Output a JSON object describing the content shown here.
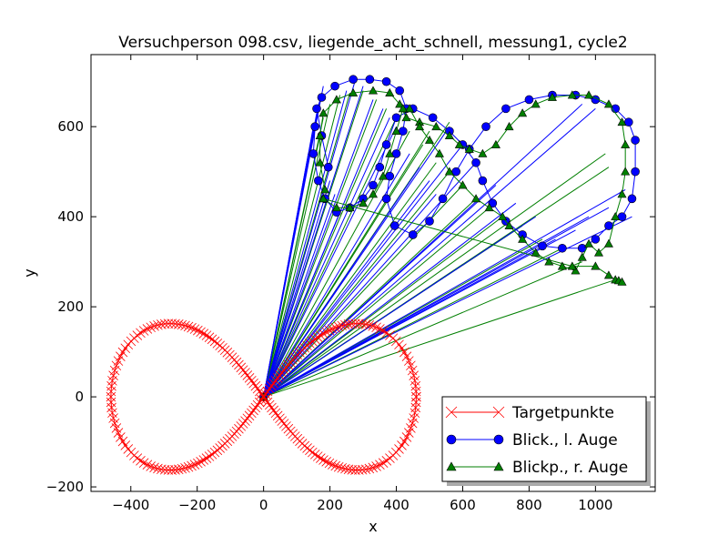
{
  "chart_data": {
    "type": "line",
    "title": "Versuchperson 098.csv, liegende_acht_schnell, messung1, cycle2",
    "xlabel": "x",
    "ylabel": "y",
    "xlim": [
      -520,
      1180
    ],
    "ylim": [
      -210,
      760
    ],
    "xticks": [
      -400,
      -200,
      0,
      200,
      400,
      600,
      800,
      1000
    ],
    "yticks": [
      -200,
      0,
      200,
      400,
      600
    ],
    "xtick_labels": [
      "−400",
      "−200",
      "0",
      "200",
      "400",
      "600",
      "800",
      "1000"
    ],
    "ytick_labels": [
      "−200",
      "0",
      "200",
      "400",
      "600"
    ],
    "grid": false,
    "legend_position": "lower-right",
    "series": [
      {
        "name": "Targetpunkte",
        "color": "#ff0000",
        "marker": "x",
        "description_type": "lemniscate",
        "lemniscate_a": 460,
        "lemniscate_points": 240
      },
      {
        "name": "Blick., l. Auge",
        "color": "#0000ff",
        "marker": "o",
        "origin": [
          0,
          0
        ],
        "trace": [
          [
            195,
            510
          ],
          [
            175,
            580
          ],
          [
            160,
            640
          ],
          [
            175,
            665
          ],
          [
            215,
            690
          ],
          [
            270,
            705
          ],
          [
            320,
            705
          ],
          [
            370,
            700
          ],
          [
            410,
            680
          ],
          [
            430,
            640
          ],
          [
            420,
            590
          ],
          [
            400,
            540
          ],
          [
            380,
            490
          ],
          [
            370,
            440
          ],
          [
            395,
            380
          ],
          [
            450,
            360
          ],
          [
            500,
            390
          ],
          [
            540,
            440
          ],
          [
            580,
            500
          ],
          [
            620,
            550
          ],
          [
            670,
            600
          ],
          [
            730,
            640
          ],
          [
            800,
            660
          ],
          [
            870,
            670
          ],
          [
            940,
            670
          ],
          [
            1000,
            660
          ],
          [
            1060,
            640
          ],
          [
            1100,
            610
          ],
          [
            1120,
            570
          ],
          [
            1120,
            500
          ],
          [
            1110,
            440
          ],
          [
            1080,
            400
          ],
          [
            1040,
            380
          ],
          [
            1000,
            350
          ],
          [
            960,
            330
          ],
          [
            900,
            330
          ],
          [
            840,
            335
          ],
          [
            780,
            360
          ],
          [
            730,
            390
          ],
          [
            690,
            430
          ],
          [
            660,
            480
          ],
          [
            640,
            520
          ],
          [
            600,
            560
          ],
          [
            560,
            590
          ],
          [
            510,
            620
          ],
          [
            450,
            640
          ],
          [
            400,
            620
          ],
          [
            370,
            560
          ],
          [
            350,
            510
          ],
          [
            330,
            470
          ],
          [
            300,
            440
          ],
          [
            260,
            420
          ],
          [
            220,
            410
          ],
          [
            185,
            440
          ],
          [
            165,
            480
          ],
          [
            150,
            540
          ],
          [
            155,
            600
          ]
        ],
        "spokes": [
          [
            135,
            540
          ],
          [
            150,
            600
          ],
          [
            160,
            630
          ],
          [
            170,
            660
          ],
          [
            180,
            690
          ],
          [
            200,
            480
          ],
          [
            215,
            450
          ],
          [
            230,
            410
          ],
          [
            250,
            680
          ],
          [
            275,
            700
          ],
          [
            300,
            690
          ],
          [
            330,
            660
          ],
          [
            360,
            640
          ],
          [
            380,
            620
          ],
          [
            400,
            600
          ],
          [
            440,
            540
          ],
          [
            470,
            510
          ],
          [
            500,
            480
          ],
          [
            520,
            450
          ],
          [
            560,
            600
          ],
          [
            600,
            560
          ],
          [
            640,
            520
          ],
          [
            700,
            470
          ],
          [
            760,
            430
          ],
          [
            820,
            400
          ],
          [
            880,
            350
          ],
          [
            940,
            370
          ],
          [
            980,
            400
          ],
          [
            1040,
            420
          ],
          [
            1090,
            460
          ],
          [
            1110,
            400
          ],
          [
            960,
            650
          ],
          [
            1000,
            640
          ]
        ]
      },
      {
        "name": "Blickp., r. Auge",
        "color": "#007f00",
        "marker": "^",
        "origin": [
          0,
          0
        ],
        "trace": [
          [
            185,
            460
          ],
          [
            170,
            520
          ],
          [
            170,
            580
          ],
          [
            180,
            630
          ],
          [
            220,
            660
          ],
          [
            270,
            675
          ],
          [
            330,
            680
          ],
          [
            380,
            675
          ],
          [
            410,
            650
          ],
          [
            430,
            620
          ],
          [
            470,
            610
          ],
          [
            520,
            600
          ],
          [
            560,
            580
          ],
          [
            590,
            560
          ],
          [
            620,
            550
          ],
          [
            660,
            540
          ],
          [
            700,
            560
          ],
          [
            740,
            600
          ],
          [
            780,
            630
          ],
          [
            820,
            650
          ],
          [
            870,
            665
          ],
          [
            930,
            670
          ],
          [
            980,
            670
          ],
          [
            1040,
            650
          ],
          [
            1080,
            610
          ],
          [
            1090,
            560
          ],
          [
            1090,
            500
          ],
          [
            1080,
            450
          ],
          [
            1060,
            400
          ],
          [
            1040,
            340
          ],
          [
            1010,
            320
          ],
          [
            980,
            340
          ],
          [
            960,
            310
          ],
          [
            940,
            280
          ],
          [
            900,
            290
          ],
          [
            860,
            300
          ],
          [
            820,
            320
          ],
          [
            780,
            350
          ],
          [
            740,
            380
          ],
          [
            720,
            400
          ],
          [
            680,
            420
          ],
          [
            640,
            440
          ],
          [
            600,
            470
          ],
          [
            560,
            500
          ],
          [
            530,
            540
          ],
          [
            500,
            570
          ],
          [
            470,
            600
          ],
          [
            440,
            640
          ],
          [
            420,
            640
          ],
          [
            400,
            590
          ],
          [
            380,
            540
          ],
          [
            360,
            490
          ],
          [
            330,
            450
          ],
          [
            300,
            430
          ],
          [
            260,
            420
          ],
          [
            220,
            420
          ],
          [
            180,
            440
          ],
          [
            930,
            290
          ],
          [
            1000,
            290
          ],
          [
            1040,
            270
          ],
          [
            1060,
            260
          ],
          [
            1070,
            258
          ],
          [
            1080,
            255
          ]
        ],
        "spokes": [
          [
            170,
            580
          ],
          [
            180,
            620
          ],
          [
            200,
            650
          ],
          [
            230,
            670
          ],
          [
            260,
            675
          ],
          [
            300,
            680
          ],
          [
            340,
            660
          ],
          [
            370,
            640
          ],
          [
            400,
            620
          ],
          [
            440,
            590
          ],
          [
            480,
            560
          ],
          [
            520,
            520
          ],
          [
            560,
            500
          ],
          [
            600,
            470
          ],
          [
            640,
            440
          ],
          [
            680,
            420
          ],
          [
            720,
            400
          ],
          [
            780,
            380
          ],
          [
            840,
            350
          ],
          [
            900,
            330
          ],
          [
            960,
            300
          ],
          [
            1030,
            540
          ],
          [
            1040,
            510
          ],
          [
            1060,
            260
          ],
          [
            500,
            590
          ],
          [
            560,
            610
          ]
        ]
      }
    ]
  }
}
